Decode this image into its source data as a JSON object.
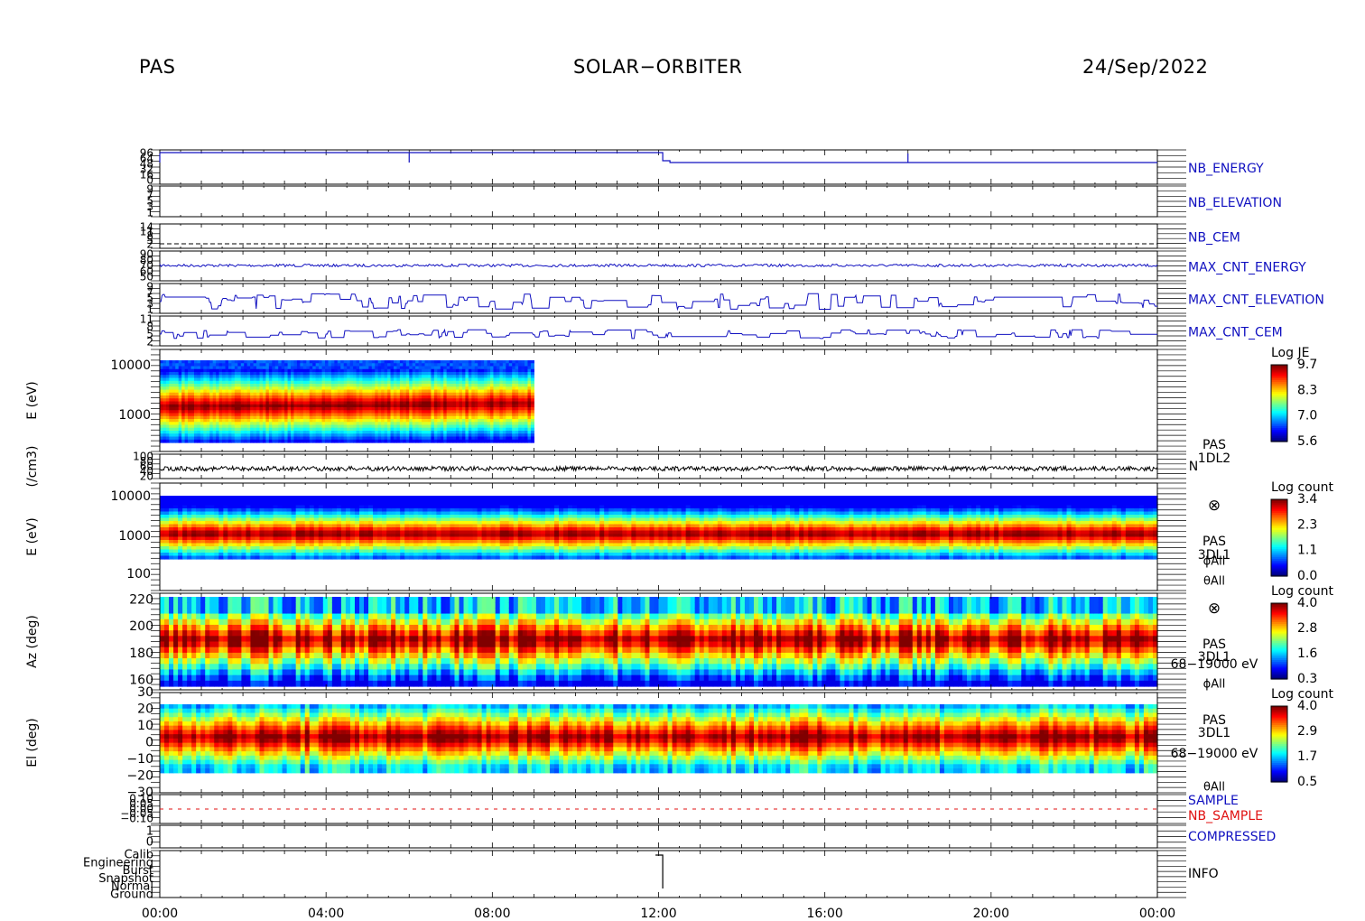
{
  "header": {
    "instrument": "PAS",
    "mission": "SOLAR−ORBITER",
    "date": "24/Sep/2022"
  },
  "chart_data": {
    "type": "heatmap",
    "time_axis": {
      "tick_labels": [
        "00:00",
        "04:00",
        "08:00",
        "12:00",
        "16:00",
        "20:00",
        "00:00"
      ],
      "range_hours": [
        0,
        24
      ]
    },
    "panels": [
      {
        "id": "nb-energy",
        "type": "line",
        "right_label": "NB_ENERGY",
        "right_color": "#1010c0",
        "y_ticks": [
          "96",
          "64",
          "48",
          "32",
          "16",
          "0"
        ],
        "description_values": {
          "level": 96,
          "drop_at_hour": 12.1,
          "after_drop": 64
        }
      },
      {
        "id": "nb-elevation",
        "type": "line",
        "right_label": "NB_ELEVATION",
        "right_color": "#1010c0",
        "y_ticks": [
          "9",
          "7",
          "5",
          "3",
          "1"
        ]
      },
      {
        "id": "nb-cem",
        "type": "line",
        "right_label": "NB_CEM",
        "right_color": "#1010c0",
        "y_ticks": [
          "14",
          "11",
          "8",
          "5",
          "2"
        ],
        "dashed_level": 3
      },
      {
        "id": "max-cnt-energy",
        "type": "line",
        "right_label": "MAX_CNT_ENERGY",
        "right_color": "#1010c0",
        "y_ticks": [
          "90",
          "80",
          "70",
          "60",
          "50"
        ],
        "mean_level": 70
      },
      {
        "id": "max-cnt-elevation",
        "type": "line",
        "right_label": "MAX_CNT_ELEVATION",
        "right_color": "#1010c0",
        "y_ticks": [
          "9",
          "7",
          "5",
          "3",
          "1"
        ]
      },
      {
        "id": "max-cnt-cem",
        "type": "line",
        "right_label": "MAX_CNT_CEM",
        "right_color": "#1010c0",
        "y_ticks": [
          "11",
          "8",
          "5",
          "2"
        ]
      },
      {
        "id": "pas-1dl2-spectrogram",
        "type": "heatmap",
        "ylabel": "E (eV)",
        "y_scale": "log",
        "y_ticks": [
          "10000",
          "1000"
        ],
        "data_end_hour": 9.0,
        "colorbar": {
          "title": "Log JE",
          "ticks": [
            "9.7",
            "8.3",
            "7.0",
            "5.6"
          ]
        }
      },
      {
        "id": "density",
        "type": "line",
        "ylabel": "(/cm3)",
        "y_ticks": [
          "100",
          "80",
          "60",
          "40",
          "20"
        ],
        "right_labels": [
          "PAS",
          "1DL2",
          "N"
        ],
        "mean_level": 45
      },
      {
        "id": "pas-3dl1-energy",
        "type": "heatmap",
        "ylabel": "E (eV)",
        "y_scale": "log",
        "y_ticks": [
          "10000",
          "1000",
          "100"
        ],
        "right_labels": [
          "PAS",
          "3DL1",
          "ϕAll",
          "θAll"
        ],
        "right_symbol": "⊗",
        "colorbar": {
          "title": "Log count",
          "ticks": [
            "3.4",
            "2.3",
            "1.1",
            "0.0"
          ]
        }
      },
      {
        "id": "pas-3dl1-azimuth",
        "type": "heatmap",
        "ylabel": "Az (deg)",
        "y_ticks": [
          "220",
          "200",
          "180",
          "160"
        ],
        "y_range": [
          153,
          225
        ],
        "right_labels": [
          "PAS",
          "3DL1",
          "68−19000 eV",
          "ϕAll"
        ],
        "right_symbol": "⊗",
        "colorbar": {
          "title": "Log count",
          "ticks": [
            "4.0",
            "2.8",
            "1.6",
            "0.3"
          ]
        }
      },
      {
        "id": "pas-3dl1-elevation",
        "type": "heatmap",
        "ylabel": "El (deg)",
        "y_ticks": [
          "30",
          "20",
          "10",
          "0",
          "−10",
          "−20",
          "−30"
        ],
        "y_range": [
          -30,
          30
        ],
        "right_labels": [
          "PAS",
          "3DL1",
          "68−19000 eV",
          "θAll"
        ],
        "colorbar": {
          "title": "Log count",
          "ticks": [
            "4.0",
            "2.9",
            "1.7",
            "0.5"
          ]
        }
      },
      {
        "id": "sample",
        "type": "line",
        "right_labels": [
          "SAMPLE",
          "NB_SAMPLE"
        ],
        "right_colors": [
          "#1010c0",
          "#e01010"
        ],
        "y_ticks": [
          "0.10",
          "0.05",
          "0.00",
          "−0.05",
          "−0.10"
        ]
      },
      {
        "id": "compressed",
        "type": "line",
        "right_label": "COMPRESSED",
        "right_color": "#1010c0",
        "y_ticks": [
          "1",
          "0"
        ]
      },
      {
        "id": "info",
        "type": "line",
        "right_label": "INFO",
        "right_color": "#000000",
        "y_ticks": [
          "Calib",
          "Engineering",
          "Burst",
          "Snapshot",
          "Normal",
          "Ground"
        ]
      }
    ]
  }
}
